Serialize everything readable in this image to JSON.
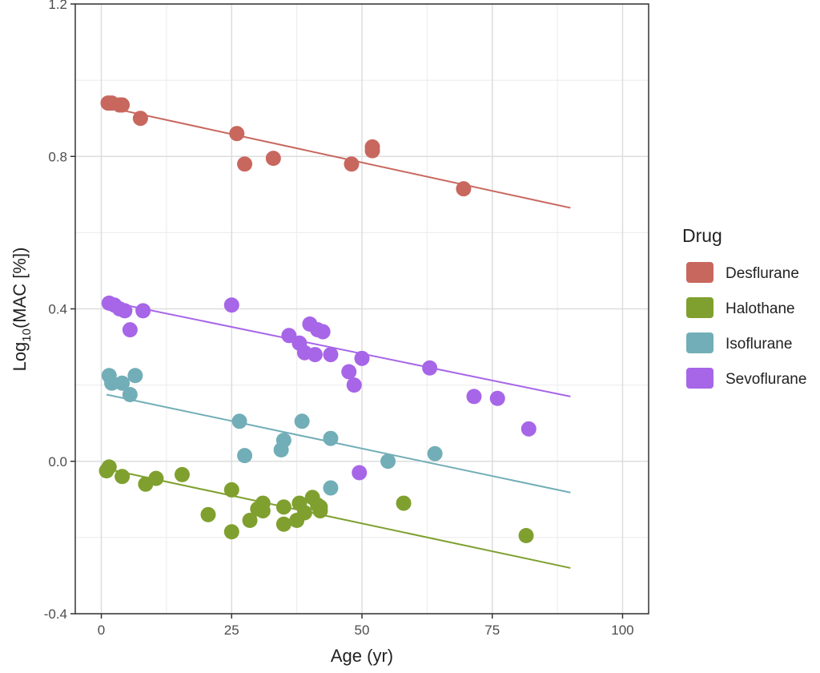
{
  "chart_data": {
    "type": "scatter",
    "title": "",
    "xlabel": "Age (yr)",
    "ylabel_main": "Log",
    "ylabel_sub": "10",
    "ylabel_rest": "(MAC [%])",
    "xlim": [
      -5,
      105
    ],
    "ylim": [
      -0.4,
      1.2
    ],
    "xticks": [
      0,
      25,
      50,
      75,
      100
    ],
    "xtick_labels": [
      "0",
      "25",
      "50",
      "75",
      "100"
    ],
    "yticks": [
      -0.4,
      0.0,
      0.4,
      0.8,
      1.2
    ],
    "ytick_labels": [
      "-0.4",
      "0.0",
      "0.4",
      "0.8",
      "1.2"
    ],
    "grid": true,
    "legend": {
      "title": "Drug",
      "position": "right"
    },
    "series": [
      {
        "name": "Desflurane",
        "color": "#C8675E",
        "points": [
          [
            1.3,
            0.94
          ],
          [
            2.0,
            0.94
          ],
          [
            3.5,
            0.935
          ],
          [
            4.0,
            0.935
          ],
          [
            7.5,
            0.9
          ],
          [
            26.0,
            0.86
          ],
          [
            27.5,
            0.78
          ],
          [
            33.0,
            0.795
          ],
          [
            48.0,
            0.78
          ],
          [
            52.0,
            0.815
          ],
          [
            52.0,
            0.825
          ],
          [
            69.5,
            0.715
          ]
        ],
        "fit": [
          [
            1,
            0.93
          ],
          [
            90,
            0.665
          ]
        ]
      },
      {
        "name": "Halothane",
        "color": "#7FA02F",
        "points": [
          [
            1.0,
            -0.025
          ],
          [
            1.5,
            -0.015
          ],
          [
            4.0,
            -0.04
          ],
          [
            8.5,
            -0.06
          ],
          [
            10.5,
            -0.045
          ],
          [
            15.5,
            -0.035
          ],
          [
            20.5,
            -0.14
          ],
          [
            25.0,
            -0.075
          ],
          [
            25.0,
            -0.185
          ],
          [
            28.5,
            -0.155
          ],
          [
            30.0,
            -0.125
          ],
          [
            31.0,
            -0.11
          ],
          [
            31.0,
            -0.13
          ],
          [
            35.0,
            -0.12
          ],
          [
            35.0,
            -0.165
          ],
          [
            37.5,
            -0.155
          ],
          [
            38.0,
            -0.11
          ],
          [
            39.0,
            -0.135
          ],
          [
            40.5,
            -0.095
          ],
          [
            41.5,
            -0.115
          ],
          [
            42.0,
            -0.13
          ],
          [
            42.0,
            -0.12
          ],
          [
            58.0,
            -0.11
          ],
          [
            81.5,
            -0.195
          ]
        ],
        "fit": [
          [
            1,
            -0.02
          ],
          [
            90,
            -0.28
          ]
        ]
      },
      {
        "name": "Isoflurane",
        "color": "#72AEB7",
        "points": [
          [
            1.5,
            0.225
          ],
          [
            2.0,
            0.205
          ],
          [
            4.0,
            0.205
          ],
          [
            5.5,
            0.175
          ],
          [
            6.5,
            0.225
          ],
          [
            26.5,
            0.105
          ],
          [
            27.5,
            0.015
          ],
          [
            34.5,
            0.03
          ],
          [
            35.0,
            0.055
          ],
          [
            38.5,
            0.105
          ],
          [
            44.0,
            0.06
          ],
          [
            44.0,
            -0.07
          ],
          [
            55.0,
            0.0
          ],
          [
            64.0,
            0.02
          ]
        ],
        "fit": [
          [
            1,
            0.175
          ],
          [
            90,
            -0.082
          ]
        ]
      },
      {
        "name": "Sevoflurane",
        "color": "#A765E8",
        "points": [
          [
            1.5,
            0.415
          ],
          [
            2.5,
            0.41
          ],
          [
            3.5,
            0.4
          ],
          [
            4.5,
            0.395
          ],
          [
            5.5,
            0.345
          ],
          [
            8.0,
            0.395
          ],
          [
            25.0,
            0.41
          ],
          [
            36.0,
            0.33
          ],
          [
            38.0,
            0.31
          ],
          [
            39.0,
            0.285
          ],
          [
            40.0,
            0.36
          ],
          [
            41.0,
            0.28
          ],
          [
            41.5,
            0.345
          ],
          [
            42.5,
            0.34
          ],
          [
            44.0,
            0.28
          ],
          [
            47.5,
            0.235
          ],
          [
            48.5,
            0.2
          ],
          [
            50.0,
            0.27
          ],
          [
            49.5,
            -0.03
          ],
          [
            63.0,
            0.245
          ],
          [
            71.5,
            0.17
          ],
          [
            76.0,
            0.165
          ],
          [
            82.0,
            0.085
          ]
        ],
        "fit": [
          [
            1,
            0.42
          ],
          [
            90,
            0.17
          ]
        ]
      }
    ]
  }
}
